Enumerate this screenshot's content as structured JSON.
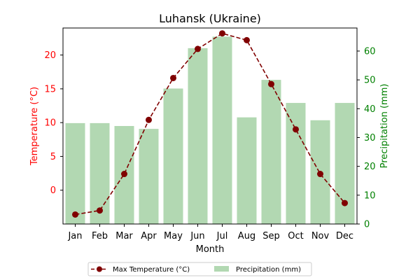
{
  "chart_data": {
    "type": "bar+line",
    "title": "Luhansk (Ukraine)",
    "xlabel": "Month",
    "categories": [
      "Jan",
      "Feb",
      "Mar",
      "Apr",
      "May",
      "Jun",
      "Jul",
      "Aug",
      "Sep",
      "Oct",
      "Nov",
      "Dec"
    ],
    "temperature": {
      "name": "Max Temperature (°C)",
      "axis_label": "Temperature (°C)",
      "values": [
        -3.6,
        -3.0,
        2.4,
        10.4,
        16.6,
        20.9,
        23.2,
        22.2,
        15.7,
        9.0,
        2.4,
        -1.9
      ],
      "ylim": [
        -5,
        24
      ],
      "ticks": [
        0,
        5,
        10,
        15,
        20
      ],
      "color": "#800000",
      "axis_color": "#ff0000",
      "style": "dashed-line-with-markers"
    },
    "precipitation": {
      "name": "Precipitation (mm)",
      "axis_label": "Precipitation (mm)",
      "values": [
        35,
        35,
        34,
        33,
        47,
        61,
        65,
        37,
        50,
        42,
        36,
        42
      ],
      "ylim": [
        0,
        68
      ],
      "ticks": [
        0,
        10,
        20,
        30,
        40,
        50,
        60
      ],
      "color": "#b2d8b2",
      "axis_color": "#008000"
    },
    "legend": {
      "placement": "bottom-center",
      "columns": 2
    }
  }
}
